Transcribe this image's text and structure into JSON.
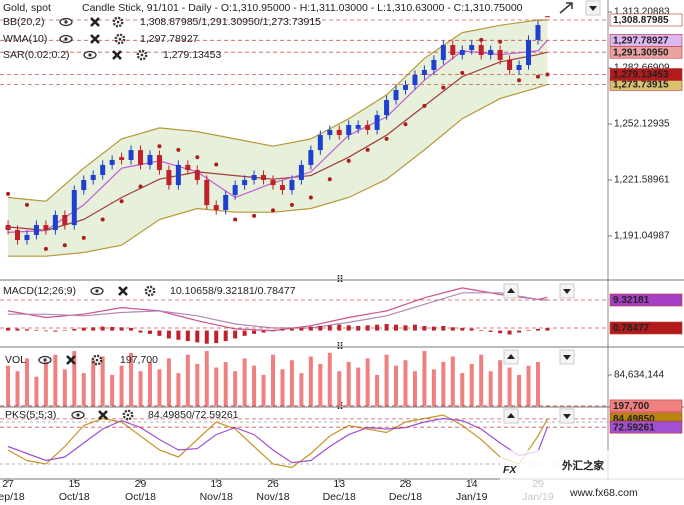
{
  "header": {
    "symbol": "Gold, spot",
    "info": "Candle Stick, 91/101 - Daily - O:1,310.95000 - H:1,311.03000 - L:1,310.63000 - C:1,310.75000"
  },
  "watermark": {
    "brand": "FX",
    "name": "外汇之家",
    "url": "www.fx68.com"
  },
  "x_axis": {
    "xlim": [
      -0.85,
      63.4
    ],
    "ticks": [
      {
        "value": 0,
        "label": "27"
      },
      {
        "value": 7,
        "label": "15"
      },
      {
        "value": 14,
        "label": "29"
      },
      {
        "value": 22,
        "label": "13"
      },
      {
        "value": 28,
        "label": "26"
      },
      {
        "value": 35,
        "label": "13"
      },
      {
        "value": 42,
        "label": "28"
      },
      {
        "value": 49,
        "label": "14"
      },
      {
        "value": 56,
        "label": "29"
      }
    ],
    "months": [
      "Sep/18",
      "Oct/18",
      "Oct/18",
      "Nov/18",
      "Nov/18",
      "Dec/18",
      "Dec/18",
      "Jan/19",
      "Jan/19"
    ]
  },
  "chart_data": [
    {
      "type": "candlestick",
      "ylim": [
        1168.1,
        1318.7
      ],
      "yticks": [
        {
          "value": 1191.04987,
          "label": "1,191.04987"
        },
        {
          "value": 1221.58961,
          "label": "1,221.58961"
        },
        {
          "value": 1252.12935,
          "label": "1,252.12935"
        },
        {
          "value": 1282.66909,
          "label": "1,282.66909"
        },
        {
          "value": 1313.20883,
          "label": "1,313.20883"
        }
      ],
      "up_color": "#1f3fcf",
      "down_color": "#c0202a",
      "open": [
        1197.0,
        1194.3,
        1188.8,
        1191.6,
        1197.0,
        1194.3,
        1202.5,
        1197.0,
        1216.1,
        1221.6,
        1224.3,
        1229.8,
        1234.0,
        1232.5,
        1237.9,
        1229.8,
        1235.2,
        1227.0,
        1218.8,
        1229.8,
        1227.0,
        1221.6,
        1207.9,
        1205.2,
        1213.4,
        1218.8,
        1221.6,
        1224.3,
        1221.6,
        1218.8,
        1216.1,
        1221.6,
        1229.8,
        1237.9,
        1246.1,
        1248.9,
        1246.1,
        1249.5,
        1251.6,
        1248.9,
        1257.0,
        1265.2,
        1270.7,
        1273.4,
        1278.9,
        1281.6,
        1287.1,
        1295.2,
        1289.8,
        1292.5,
        1295.2,
        1289.8,
        1292.5,
        1287.1,
        1281.6,
        1284.3,
        1298.0,
        1310.95
      ],
      "high": [
        1199.5,
        1196.8,
        1194.1,
        1199.5,
        1199.5,
        1205.0,
        1205.0,
        1218.6,
        1224.1,
        1226.8,
        1232.3,
        1235.0,
        1236.5,
        1240.4,
        1240.4,
        1237.7,
        1237.7,
        1229.5,
        1232.3,
        1232.3,
        1229.5,
        1224.1,
        1210.4,
        1215.9,
        1221.3,
        1224.1,
        1226.8,
        1226.8,
        1224.1,
        1221.3,
        1224.1,
        1232.3,
        1240.4,
        1248.6,
        1251.4,
        1251.4,
        1254.1,
        1254.1,
        1254.1,
        1259.5,
        1267.7,
        1273.2,
        1275.9,
        1281.4,
        1284.1,
        1289.6,
        1297.7,
        1297.7,
        1295.0,
        1297.7,
        1297.7,
        1295.0,
        1295.0,
        1289.6,
        1286.8,
        1300.5,
        1308.6,
        1311.03
      ],
      "low": [
        1191.8,
        1186.3,
        1186.3,
        1189.1,
        1191.8,
        1191.8,
        1194.5,
        1194.5,
        1213.6,
        1219.1,
        1221.8,
        1227.3,
        1230.0,
        1230.0,
        1227.3,
        1227.3,
        1224.5,
        1216.3,
        1216.3,
        1224.5,
        1219.1,
        1205.4,
        1202.7,
        1202.7,
        1210.9,
        1216.3,
        1219.1,
        1219.1,
        1216.3,
        1213.6,
        1213.6,
        1219.1,
        1227.3,
        1235.4,
        1243.6,
        1243.6,
        1243.6,
        1247.0,
        1246.4,
        1246.4,
        1254.5,
        1262.7,
        1268.2,
        1270.9,
        1276.4,
        1279.1,
        1284.6,
        1287.3,
        1287.3,
        1290.0,
        1287.3,
        1287.3,
        1284.6,
        1279.1,
        1279.1,
        1281.8,
        1295.5,
        1310.63
      ],
      "close": [
        1194.3,
        1188.8,
        1191.6,
        1197.0,
        1194.3,
        1202.5,
        1197.0,
        1216.1,
        1221.6,
        1224.3,
        1229.8,
        1232.5,
        1232.5,
        1237.9,
        1229.8,
        1235.2,
        1227.0,
        1218.8,
        1229.8,
        1227.0,
        1221.6,
        1207.9,
        1205.2,
        1213.4,
        1218.8,
        1221.6,
        1224.3,
        1221.6,
        1218.8,
        1216.1,
        1221.6,
        1229.8,
        1237.9,
        1246.1,
        1248.9,
        1246.1,
        1251.6,
        1251.6,
        1248.9,
        1257.0,
        1265.2,
        1270.7,
        1273.4,
        1278.9,
        1281.6,
        1287.1,
        1295.2,
        1289.8,
        1292.5,
        1295.2,
        1289.8,
        1292.5,
        1287.1,
        1281.6,
        1284.3,
        1298.0,
        1306.1,
        1310.75
      ],
      "indicators": [
        {
          "name": "BB(20,2)",
          "readout": "1,308.87985/1,291.30950/1,273.73915",
          "readout_color": "#c03a3a",
          "band_fill": "#e4eed6",
          "series": [
            {
              "style": "line",
              "color": "#b59a3a",
              "x": [
                0,
                4,
                8,
                12,
                16,
                20,
                24,
                28,
                32,
                36,
                40,
                44,
                48,
                52,
                56,
                57
              ],
              "values": [
                1212,
                1210,
                1228,
                1244,
                1250,
                1248,
                1244,
                1240,
                1244,
                1255,
                1268,
                1288,
                1302,
                1306,
                1308.9,
                1308.87985
              ],
              "last_label": "1,308.87985",
              "label_bg": "#ffffff",
              "label_color": "#222222"
            },
            {
              "style": "line",
              "color": "#a23b3b",
              "x": [
                0,
                4,
                8,
                12,
                16,
                20,
                24,
                28,
                32,
                36,
                40,
                44,
                48,
                52,
                56,
                57
              ],
              "values": [
                1196,
                1194,
                1200,
                1212,
                1222,
                1226,
                1224,
                1222,
                1224,
                1234,
                1246,
                1262,
                1278,
                1286,
                1290,
                1291.3095
              ],
              "last_label": "1,291.30950",
              "label_bg": "#eaa2a2",
              "label_color": "#222222"
            },
            {
              "style": "line",
              "color": "#b59a3a",
              "x": [
                0,
                4,
                8,
                12,
                16,
                20,
                24,
                28,
                32,
                36,
                40,
                44,
                48,
                52,
                56,
                57
              ],
              "values": [
                1180,
                1180,
                1182,
                1186,
                1200,
                1206,
                1204,
                1204,
                1206,
                1212,
                1222,
                1238,
                1255,
                1266,
                1272,
                1273.73915
              ],
              "last_label": "1,273.73915",
              "label_bg": "#d8c26e",
              "label_color": "#222222"
            }
          ]
        },
        {
          "name": "WMA(10)",
          "readout": "1,297.78927",
          "readout_color": "#b34fd0",
          "series": [
            {
              "style": "line",
              "color": "#c25ad6",
              "x": [
                0,
                4,
                8,
                12,
                16,
                20,
                24,
                28,
                32,
                36,
                40,
                44,
                48,
                52,
                56,
                57
              ],
              "values": [
                1193,
                1194,
                1208,
                1228,
                1232,
                1226,
                1212,
                1220,
                1226,
                1246,
                1256,
                1276,
                1292,
                1290,
                1292,
                1297.78927
              ],
              "last_label": "1,297.78927",
              "label_bg": "#dcb8f2",
              "label_color": "#7a2c9a"
            }
          ]
        },
        {
          "name": "SAR(0.02;0.2)",
          "readout": "1,279.13453",
          "readout_color": "#b01c1c",
          "series": [
            {
              "style": "dots",
              "color": "#b01c1c",
              "x": [
                0,
                2,
                4,
                6,
                8,
                10,
                12,
                14,
                16,
                18,
                20,
                22,
                24,
                26,
                28,
                30,
                32,
                34,
                36,
                38,
                40,
                42,
                44,
                46,
                48,
                50,
                52,
                54,
                56,
                57
              ],
              "values": [
                1214,
                1208,
                1184,
                1186,
                1190,
                1200,
                1210,
                1218,
                1240,
                1238,
                1234,
                1230,
                1200,
                1202,
                1205,
                1208,
                1212,
                1222,
                1232,
                1238,
                1244,
                1252,
                1262,
                1272,
                1280,
                1298,
                1297,
                1276,
                1278,
                1279.13453
              ],
              "last_label": "1,279.13453",
              "label_bg": "#b01c1c",
              "label_color": "#ffffff"
            }
          ]
        }
      ]
    },
    {
      "type": "macd",
      "title": "MACD(12;26;9)",
      "readout": "10.10658/9.32181/0.78477",
      "readout_color": "#c05050",
      "ylim": [
        -4.7,
        14.5
      ],
      "series": [
        {
          "style": "line",
          "color": "#d0508a",
          "x": [
            0,
            4,
            8,
            12,
            16,
            20,
            24,
            28,
            32,
            36,
            40,
            44,
            48,
            52,
            56,
            57
          ],
          "values": [
            6,
            4,
            5,
            7,
            6,
            3,
            0.5,
            0,
            1.5,
            4,
            6,
            10,
            13,
            11,
            9.5,
            10.10658
          ]
        },
        {
          "style": "line",
          "color": "#b08ab8",
          "x": [
            0,
            4,
            8,
            12,
            16,
            20,
            24,
            28,
            32,
            36,
            40,
            44,
            48,
            52,
            56,
            57
          ],
          "values": [
            5,
            5,
            4.5,
            5.5,
            6,
            4.5,
            2,
            0.8,
            0.8,
            2.5,
            4.5,
            8,
            11.5,
            11.5,
            9.5,
            9.32181
          ],
          "last_label": "9.32181",
          "label_bg": "#a540c4",
          "label_color": "#ffffff"
        },
        {
          "style": "bars",
          "color": "#c0202a",
          "values": [
            0.8,
            0.6,
            0.4,
            0.2,
            -0.2,
            -0.3,
            0.1,
            0.5,
            0.9,
            1.0,
            1.2,
            1.1,
            1.0,
            0.8,
            -0.6,
            -1.0,
            -1.6,
            -2.4,
            -2.8,
            -3.2,
            -3.6,
            -4.0,
            -3.8,
            -3.2,
            -2.4,
            -1.6,
            -1.0,
            -0.6,
            -0.2,
            0.4,
            0.6,
            0.8,
            1.2,
            1.4,
            1.6,
            1.8,
            1.6,
            1.4,
            1.6,
            1.8,
            2.0,
            1.8,
            1.6,
            1.8,
            1.4,
            1.2,
            1.4,
            1.0,
            0.8,
            0.6,
            0.2,
            -0.4,
            -0.8,
            -1.2,
            -0.6,
            0.2,
            0.5,
            0.78477
          ],
          "last_label": "0.78477",
          "label_bg": "#b01c1c",
          "label_color": "#ffffff"
        }
      ]
    },
    {
      "type": "bar",
      "title": "VOL",
      "readout": "197,700",
      "readout_color": "#f07a7a",
      "ylim": [
        0,
        158300000
      ],
      "yticks": [
        {
          "value": 84634144,
          "label": "84,634,144"
        }
      ],
      "series": [
        {
          "style": "bars",
          "color": "#f08080",
          "values": [
            110000000,
            95000000,
            130000000,
            80000000,
            120000000,
            140000000,
            100000000,
            150000000,
            90000000,
            125000000,
            135000000,
            85000000,
            110000000,
            145000000,
            95000000,
            120000000,
            100000000,
            130000000,
            90000000,
            140000000,
            115000000,
            150000000,
            105000000,
            120000000,
            95000000,
            130000000,
            110000000,
            85000000,
            140000000,
            100000000,
            125000000,
            90000000,
            135000000,
            115000000,
            145000000,
            95000000,
            120000000,
            105000000,
            130000000,
            85000000,
            140000000,
            110000000,
            125000000,
            95000000,
            150000000,
            100000000,
            120000000,
            135000000,
            90000000,
            115000000,
            140000000,
            95000000,
            125000000,
            105000000,
            85000000,
            110000000,
            120000000,
            197700
          ],
          "last_label": "197,700",
          "label_bg": "#f08080",
          "label_color": "#ffffff"
        }
      ]
    },
    {
      "type": "line",
      "title": "PKS(5;5;3)",
      "readout": "84.49850/72.59261",
      "readout_color": "#b8860b",
      "ylim": [
        0,
        100
      ],
      "levels": [
        20,
        80
      ],
      "series": [
        {
          "style": "line",
          "color": "#c8962a",
          "x": [
            0,
            2,
            4,
            6,
            8,
            10,
            12,
            14,
            16,
            18,
            20,
            22,
            24,
            26,
            28,
            30,
            32,
            34,
            36,
            38,
            40,
            42,
            44,
            46,
            48,
            50,
            52,
            54,
            56,
            57
          ],
          "values": [
            40,
            25,
            20,
            45,
            75,
            85,
            80,
            60,
            40,
            30,
            55,
            80,
            70,
            45,
            20,
            15,
            35,
            60,
            75,
            70,
            65,
            80,
            85,
            90,
            75,
            55,
            30,
            20,
            60,
            84.4985
          ],
          "last_label": "84.49850",
          "label_bg": "#b8860b",
          "label_color": "#ffffff"
        },
        {
          "style": "line",
          "color": "#a050d0",
          "x": [
            0,
            2,
            4,
            6,
            8,
            10,
            12,
            14,
            16,
            18,
            20,
            22,
            24,
            26,
            28,
            30,
            32,
            34,
            36,
            38,
            40,
            42,
            44,
            46,
            48,
            50,
            52,
            54,
            56,
            57
          ],
          "values": [
            45,
            35,
            25,
            30,
            50,
            70,
            82,
            72,
            55,
            40,
            42,
            62,
            72,
            62,
            40,
            22,
            25,
            45,
            62,
            72,
            70,
            72,
            80,
            85,
            82,
            70,
            50,
            32,
            38,
            72.59261
          ],
          "last_label": "72.59261",
          "label_bg": "#a050d0",
          "label_color": "#ffffff"
        }
      ]
    }
  ]
}
